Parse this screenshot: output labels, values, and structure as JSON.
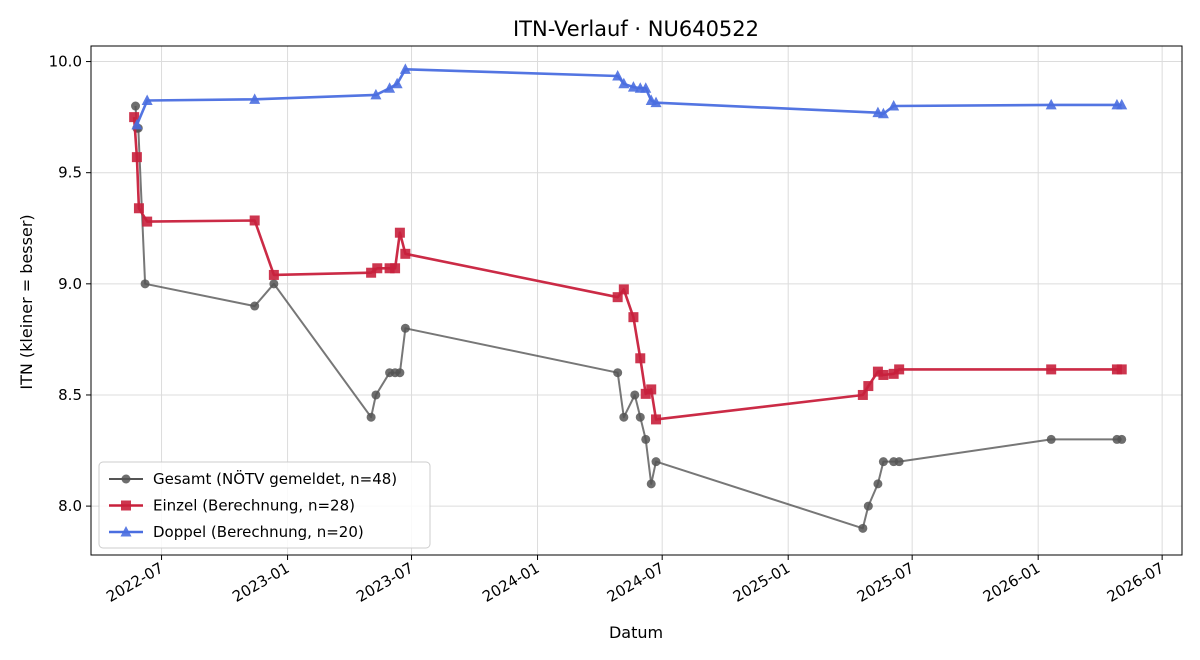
{
  "chart_data": {
    "type": "line",
    "title": "ITN-Verlauf · NU640522",
    "xlabel": "Datum",
    "ylabel": "ITN  (kleiner = besser)",
    "x_axis": {
      "type": "date",
      "range": [
        "2022-03-20",
        "2026-07-30"
      ],
      "ticks": [
        "2022-07-01",
        "2023-01-01",
        "2023-07-01",
        "2024-01-01",
        "2024-07-01",
        "2025-01-01",
        "2025-07-01",
        "2026-01-01",
        "2026-07-01"
      ],
      "tick_labels": [
        "2022-07",
        "2023-01",
        "2023-07",
        "2024-01",
        "2024-07",
        "2025-01",
        "2025-07",
        "2026-01",
        "2026-07"
      ]
    },
    "y_axis": {
      "range": [
        7.78,
        10.07
      ],
      "ticks": [
        8.0,
        8.5,
        9.0,
        9.5,
        10.0
      ],
      "tick_labels": [
        "8.0",
        "8.5",
        "9.0",
        "9.5",
        "10.0"
      ]
    },
    "grid": true,
    "legend_position": "lower-left",
    "series": [
      {
        "name": "Gesamt (NÖTV gemeldet, n=48)",
        "color": "#555555",
        "marker": "circle",
        "points": [
          [
            "2022-05-24",
            9.8
          ],
          [
            "2022-05-26",
            9.7
          ],
          [
            "2022-05-28",
            9.7
          ],
          [
            "2022-06-07",
            9.0
          ],
          [
            "2022-11-14",
            8.9
          ],
          [
            "2022-12-12",
            9.0
          ],
          [
            "2023-05-03",
            8.4
          ],
          [
            "2023-05-10",
            8.5
          ],
          [
            "2023-05-30",
            8.6
          ],
          [
            "2023-06-07",
            8.6
          ],
          [
            "2023-06-14",
            8.6
          ],
          [
            "2023-06-22",
            8.8
          ],
          [
            "2024-04-27",
            8.6
          ],
          [
            "2024-05-06",
            8.4
          ],
          [
            "2024-05-22",
            8.5
          ],
          [
            "2024-05-30",
            8.4
          ],
          [
            "2024-06-07",
            8.3
          ],
          [
            "2024-06-15",
            8.1
          ],
          [
            "2024-06-22",
            8.2
          ],
          [
            "2025-04-20",
            7.9
          ],
          [
            "2025-04-28",
            8.0
          ],
          [
            "2025-05-12",
            8.1
          ],
          [
            "2025-05-20",
            8.2
          ],
          [
            "2025-06-04",
            8.2
          ],
          [
            "2025-06-12",
            8.2
          ],
          [
            "2026-01-20",
            8.3
          ],
          [
            "2026-04-26",
            8.3
          ],
          [
            "2026-05-03",
            8.3
          ]
        ]
      },
      {
        "name": "Einzel (Berechnung, n=28)",
        "color": "#c8203c",
        "marker": "square",
        "points": [
          [
            "2022-05-22",
            9.75
          ],
          [
            "2022-05-26",
            9.57
          ],
          [
            "2022-05-29",
            9.34
          ],
          [
            "2022-06-10",
            9.28
          ],
          [
            "2022-11-14",
            9.285
          ],
          [
            "2022-12-12",
            9.04
          ],
          [
            "2023-05-03",
            9.05
          ],
          [
            "2023-05-12",
            9.07
          ],
          [
            "2023-05-30",
            9.07
          ],
          [
            "2023-06-07",
            9.07
          ],
          [
            "2023-06-14",
            9.23
          ],
          [
            "2023-06-22",
            9.135
          ],
          [
            "2024-04-27",
            8.94
          ],
          [
            "2024-05-06",
            8.975
          ],
          [
            "2024-05-20",
            8.85
          ],
          [
            "2024-05-30",
            8.665
          ],
          [
            "2024-06-07",
            8.505
          ],
          [
            "2024-06-15",
            8.525
          ],
          [
            "2024-06-22",
            8.39
          ],
          [
            "2025-04-20",
            8.5
          ],
          [
            "2025-04-28",
            8.54
          ],
          [
            "2025-05-12",
            8.605
          ],
          [
            "2025-05-20",
            8.59
          ],
          [
            "2025-06-04",
            8.595
          ],
          [
            "2025-06-12",
            8.615
          ],
          [
            "2026-01-20",
            8.615
          ],
          [
            "2026-04-26",
            8.615
          ],
          [
            "2026-05-03",
            8.615
          ]
        ]
      },
      {
        "name": "Doppel (Berechnung, n=20)",
        "color": "#4a6ee0",
        "marker": "triangle",
        "points": [
          [
            "2022-05-26",
            9.715
          ],
          [
            "2022-06-10",
            9.825
          ],
          [
            "2022-11-14",
            9.83
          ],
          [
            "2023-05-10",
            9.85
          ],
          [
            "2023-05-30",
            9.88
          ],
          [
            "2023-06-10",
            9.9
          ],
          [
            "2023-06-22",
            9.965
          ],
          [
            "2024-04-27",
            9.935
          ],
          [
            "2024-05-06",
            9.9
          ],
          [
            "2024-05-20",
            9.885
          ],
          [
            "2024-05-30",
            9.88
          ],
          [
            "2024-06-07",
            9.88
          ],
          [
            "2024-06-15",
            9.825
          ],
          [
            "2024-06-22",
            9.815
          ],
          [
            "2025-05-12",
            9.77
          ],
          [
            "2025-05-20",
            9.765
          ],
          [
            "2025-06-04",
            9.8
          ],
          [
            "2026-01-20",
            9.805
          ],
          [
            "2026-04-26",
            9.805
          ],
          [
            "2026-05-03",
            9.805
          ]
        ]
      }
    ]
  }
}
